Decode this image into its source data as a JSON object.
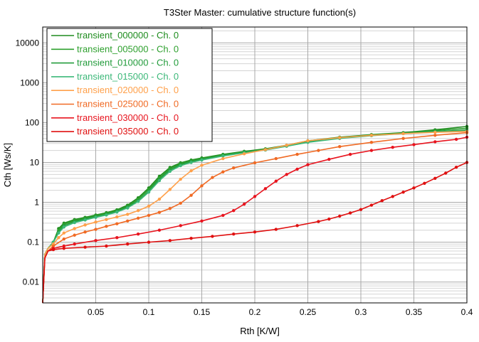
{
  "chart_data": {
    "type": "line",
    "title": "T3Ster Master: cumulative structure function(s)",
    "xlabel": "Rth  [K/W]",
    "ylabel": "Cth  [Ws/K]",
    "xlim": [
      0,
      0.4
    ],
    "ylim": [
      0.003,
      25000
    ],
    "yscale": "log",
    "grid": true,
    "legend_position": "top-left",
    "x_ticks": [
      {
        "value": 0.05,
        "label": "0.05"
      },
      {
        "value": 0.1,
        "label": "0.1"
      },
      {
        "value": 0.15,
        "label": "0.15"
      },
      {
        "value": 0.2,
        "label": "0.2"
      },
      {
        "value": 0.25,
        "label": "0.25"
      },
      {
        "value": 0.3,
        "label": "0.3"
      },
      {
        "value": 0.35,
        "label": "0.35"
      },
      {
        "value": 0.4,
        "label": "0.4"
      }
    ],
    "y_ticks": [
      {
        "value": 0.01,
        "label": "0.01"
      },
      {
        "value": 0.1,
        "label": "0.1"
      },
      {
        "value": 1,
        "label": "1"
      },
      {
        "value": 10,
        "label": "10"
      },
      {
        "value": 100,
        "label": "100"
      },
      {
        "value": 1000,
        "label": "1000"
      },
      {
        "value": 10000,
        "label": "10000"
      }
    ],
    "series": [
      {
        "name": "transient_000000 - Ch. 0",
        "color": "#1e8c1e",
        "x": [
          0,
          0.002,
          0.005,
          0.01,
          0.015,
          0.02,
          0.03,
          0.04,
          0.05,
          0.06,
          0.07,
          0.08,
          0.09,
          0.1,
          0.11,
          0.12,
          0.13,
          0.14,
          0.15,
          0.17,
          0.19,
          0.21,
          0.23,
          0.25,
          0.28,
          0.31,
          0.34,
          0.37,
          0.4
        ],
        "y": [
          0.003,
          0.05,
          0.07,
          0.1,
          0.22,
          0.3,
          0.37,
          0.42,
          0.48,
          0.55,
          0.65,
          0.85,
          1.3,
          2.3,
          4.5,
          7.5,
          9.8,
          11.5,
          13,
          16,
          19,
          22,
          27,
          35,
          43,
          50,
          56,
          66,
          80
        ]
      },
      {
        "name": "transient_005000 - Ch. 0",
        "color": "#2ea02e",
        "x": [
          0,
          0.002,
          0.005,
          0.01,
          0.015,
          0.02,
          0.03,
          0.04,
          0.05,
          0.06,
          0.07,
          0.08,
          0.09,
          0.1,
          0.11,
          0.12,
          0.13,
          0.14,
          0.15,
          0.17,
          0.19,
          0.21,
          0.23,
          0.25,
          0.28,
          0.31,
          0.34,
          0.37,
          0.4
        ],
        "y": [
          0.003,
          0.05,
          0.07,
          0.1,
          0.2,
          0.28,
          0.35,
          0.4,
          0.46,
          0.53,
          0.62,
          0.8,
          1.2,
          2.1,
          4.1,
          7.0,
          9.3,
          11,
          12.5,
          15.5,
          18.5,
          21.5,
          26.5,
          34,
          42,
          49,
          55,
          63,
          72
        ]
      },
      {
        "name": "transient_010000 - Ch. 0",
        "color": "#239c3c",
        "x": [
          0,
          0.002,
          0.005,
          0.01,
          0.015,
          0.02,
          0.03,
          0.04,
          0.05,
          0.06,
          0.07,
          0.08,
          0.09,
          0.1,
          0.11,
          0.12,
          0.13,
          0.14,
          0.15,
          0.17,
          0.19,
          0.21,
          0.23,
          0.25,
          0.28,
          0.31,
          0.34,
          0.37,
          0.4
        ],
        "y": [
          0.003,
          0.05,
          0.07,
          0.1,
          0.18,
          0.26,
          0.33,
          0.38,
          0.44,
          0.5,
          0.6,
          0.76,
          1.1,
          1.9,
          3.8,
          6.5,
          8.8,
          10.5,
          12,
          15,
          18,
          21,
          26,
          33,
          41,
          48,
          54,
          60,
          65
        ]
      },
      {
        "name": "transient_015000 - Ch. 0",
        "color": "#3cb879",
        "x": [
          0,
          0.002,
          0.005,
          0.01,
          0.015,
          0.02,
          0.03,
          0.04,
          0.05,
          0.06,
          0.07,
          0.08,
          0.09,
          0.1,
          0.11,
          0.12,
          0.13,
          0.14,
          0.15,
          0.17,
          0.19,
          0.21,
          0.23,
          0.25,
          0.28,
          0.31,
          0.34,
          0.37,
          0.4
        ],
        "y": [
          0.003,
          0.05,
          0.07,
          0.1,
          0.17,
          0.24,
          0.31,
          0.36,
          0.42,
          0.48,
          0.57,
          0.72,
          1.05,
          1.8,
          3.5,
          6.0,
          8.3,
          10,
          11.5,
          14.5,
          17.5,
          20.5,
          25.5,
          32,
          40,
          47,
          53,
          58,
          62
        ]
      },
      {
        "name": "transient_020000 - Ch. 0",
        "color": "#ffa04a",
        "x": [
          0,
          0.002,
          0.005,
          0.01,
          0.015,
          0.02,
          0.03,
          0.04,
          0.05,
          0.06,
          0.07,
          0.08,
          0.09,
          0.1,
          0.11,
          0.12,
          0.13,
          0.14,
          0.15,
          0.17,
          0.19,
          0.21,
          0.23,
          0.25,
          0.28,
          0.31,
          0.34,
          0.37,
          0.4
        ],
        "y": [
          0.003,
          0.05,
          0.07,
          0.09,
          0.13,
          0.17,
          0.22,
          0.27,
          0.32,
          0.37,
          0.43,
          0.5,
          0.62,
          0.8,
          1.2,
          2.1,
          3.8,
          6.2,
          8.5,
          12.5,
          16.5,
          21,
          27,
          35,
          42,
          48,
          53,
          57,
          60
        ]
      },
      {
        "name": "transient_025000 - Ch. 0",
        "color": "#f06a24",
        "x": [
          0,
          0.002,
          0.005,
          0.01,
          0.02,
          0.03,
          0.04,
          0.05,
          0.06,
          0.07,
          0.08,
          0.09,
          0.1,
          0.11,
          0.12,
          0.13,
          0.14,
          0.15,
          0.16,
          0.17,
          0.18,
          0.2,
          0.22,
          0.24,
          0.26,
          0.28,
          0.31,
          0.34,
          0.37,
          0.4
        ],
        "y": [
          0.003,
          0.04,
          0.06,
          0.08,
          0.12,
          0.15,
          0.18,
          0.21,
          0.25,
          0.29,
          0.34,
          0.4,
          0.47,
          0.56,
          0.7,
          0.95,
          1.5,
          2.6,
          4.2,
          5.8,
          7.3,
          9.8,
          12.5,
          16,
          20,
          25,
          32,
          40,
          48,
          56
        ]
      },
      {
        "name": "transient_030000 - Ch. 0",
        "color": "#e8141e",
        "x": [
          0,
          0.002,
          0.005,
          0.01,
          0.02,
          0.03,
          0.05,
          0.07,
          0.09,
          0.11,
          0.13,
          0.15,
          0.17,
          0.18,
          0.19,
          0.2,
          0.21,
          0.22,
          0.23,
          0.24,
          0.25,
          0.27,
          0.29,
          0.31,
          0.33,
          0.35,
          0.37,
          0.39,
          0.4
        ],
        "y": [
          0.003,
          0.04,
          0.06,
          0.07,
          0.08,
          0.09,
          0.11,
          0.13,
          0.16,
          0.2,
          0.26,
          0.34,
          0.47,
          0.62,
          0.9,
          1.4,
          2.2,
          3.4,
          5.0,
          6.8,
          8.8,
          12,
          16,
          20,
          24,
          28,
          33,
          38,
          43
        ]
      },
      {
        "name": "transient_035000 - Ch. 0",
        "color": "#e01010",
        "x": [
          0,
          0.002,
          0.005,
          0.01,
          0.02,
          0.04,
          0.06,
          0.08,
          0.1,
          0.12,
          0.14,
          0.16,
          0.18,
          0.2,
          0.22,
          0.24,
          0.26,
          0.27,
          0.28,
          0.29,
          0.3,
          0.31,
          0.32,
          0.33,
          0.34,
          0.35,
          0.36,
          0.37,
          0.38,
          0.39,
          0.4
        ],
        "y": [
          0.003,
          0.04,
          0.06,
          0.065,
          0.07,
          0.075,
          0.08,
          0.09,
          0.1,
          0.11,
          0.125,
          0.14,
          0.16,
          0.18,
          0.21,
          0.26,
          0.33,
          0.38,
          0.45,
          0.54,
          0.66,
          0.85,
          1.1,
          1.4,
          1.8,
          2.3,
          3.0,
          4.0,
          5.4,
          7.6,
          10
        ]
      }
    ]
  }
}
